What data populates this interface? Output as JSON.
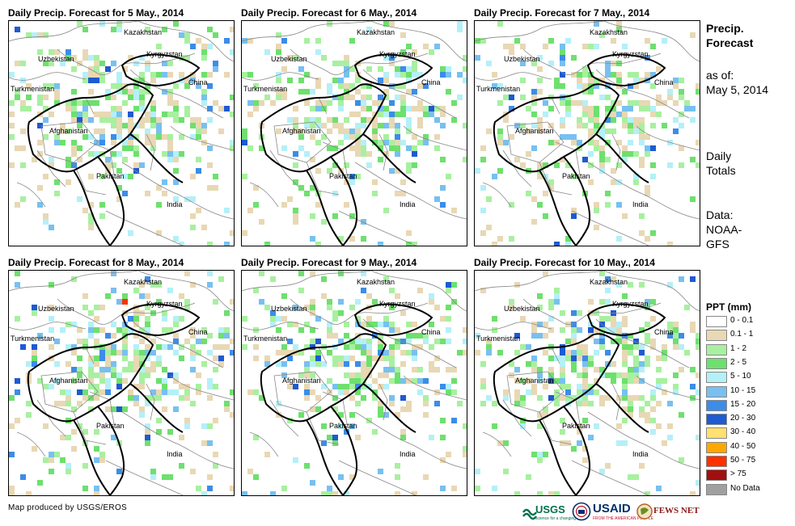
{
  "panels": [
    {
      "title": "Daily Precip. Forecast for 5 May., 2014"
    },
    {
      "title": "Daily Precip. Forecast for 6 May., 2014"
    },
    {
      "title": "Daily Precip. Forecast for 7 May., 2014"
    },
    {
      "title": "Daily Precip. Forecast for 8 May., 2014"
    },
    {
      "title": "Daily Precip. Forecast for 9 May., 2014"
    },
    {
      "title": "Daily Precip. Forecast for 10 May., 2014"
    }
  ],
  "countries": {
    "kazakhstan": "Kazakhstan",
    "uzbekistan": "Uzbekistan",
    "kyrgyzstan": "Kyrgyzstan",
    "turkmenistan": "Turkmenistan",
    "china": "China",
    "afghanistan": "Afghanistan",
    "pakistan": "Pakistan",
    "india": "India"
  },
  "side": {
    "title_line1": "Precip.",
    "title_line2": "Forecast",
    "asof_line1": "as of:",
    "asof_line2": "May 5, 2014",
    "totals_line1": "Daily",
    "totals_line2": "Totals",
    "data_line1": "Data:",
    "data_line2": "NOAA-",
    "data_line3": "GFS"
  },
  "legend": {
    "title": "PPT (mm)",
    "items": [
      {
        "label": "0 - 0.1",
        "color": "#ffffff"
      },
      {
        "label": "0.1 - 1",
        "color": "#e8d8b4"
      },
      {
        "label": "1 - 2",
        "color": "#a8f0a0"
      },
      {
        "label": "2 - 5",
        "color": "#6ee06e"
      },
      {
        "label": "5 - 10",
        "color": "#b4f0f8"
      },
      {
        "label": "10 - 15",
        "color": "#78c0f0"
      },
      {
        "label": "15 - 20",
        "color": "#3c8ce8"
      },
      {
        "label": "20 - 30",
        "color": "#1e5ad2"
      },
      {
        "label": "30 - 40",
        "color": "#ffe070"
      },
      {
        "label": "40 - 50",
        "color": "#ffa800"
      },
      {
        "label": "50 - 75",
        "color": "#ff3000"
      },
      {
        "label": "> 75",
        "color": "#a01010"
      },
      {
        "label": "No Data",
        "color": "#a0a0a0"
      }
    ]
  },
  "credit": "Map produced by USGS/EROS",
  "logos": {
    "usgs": "USGS",
    "usgs_tag": "science for a changing world",
    "usaid": "USAID",
    "usaid_tag": "FROM THE AMERICAN PEOPLE",
    "fews": "FEWS NET"
  }
}
